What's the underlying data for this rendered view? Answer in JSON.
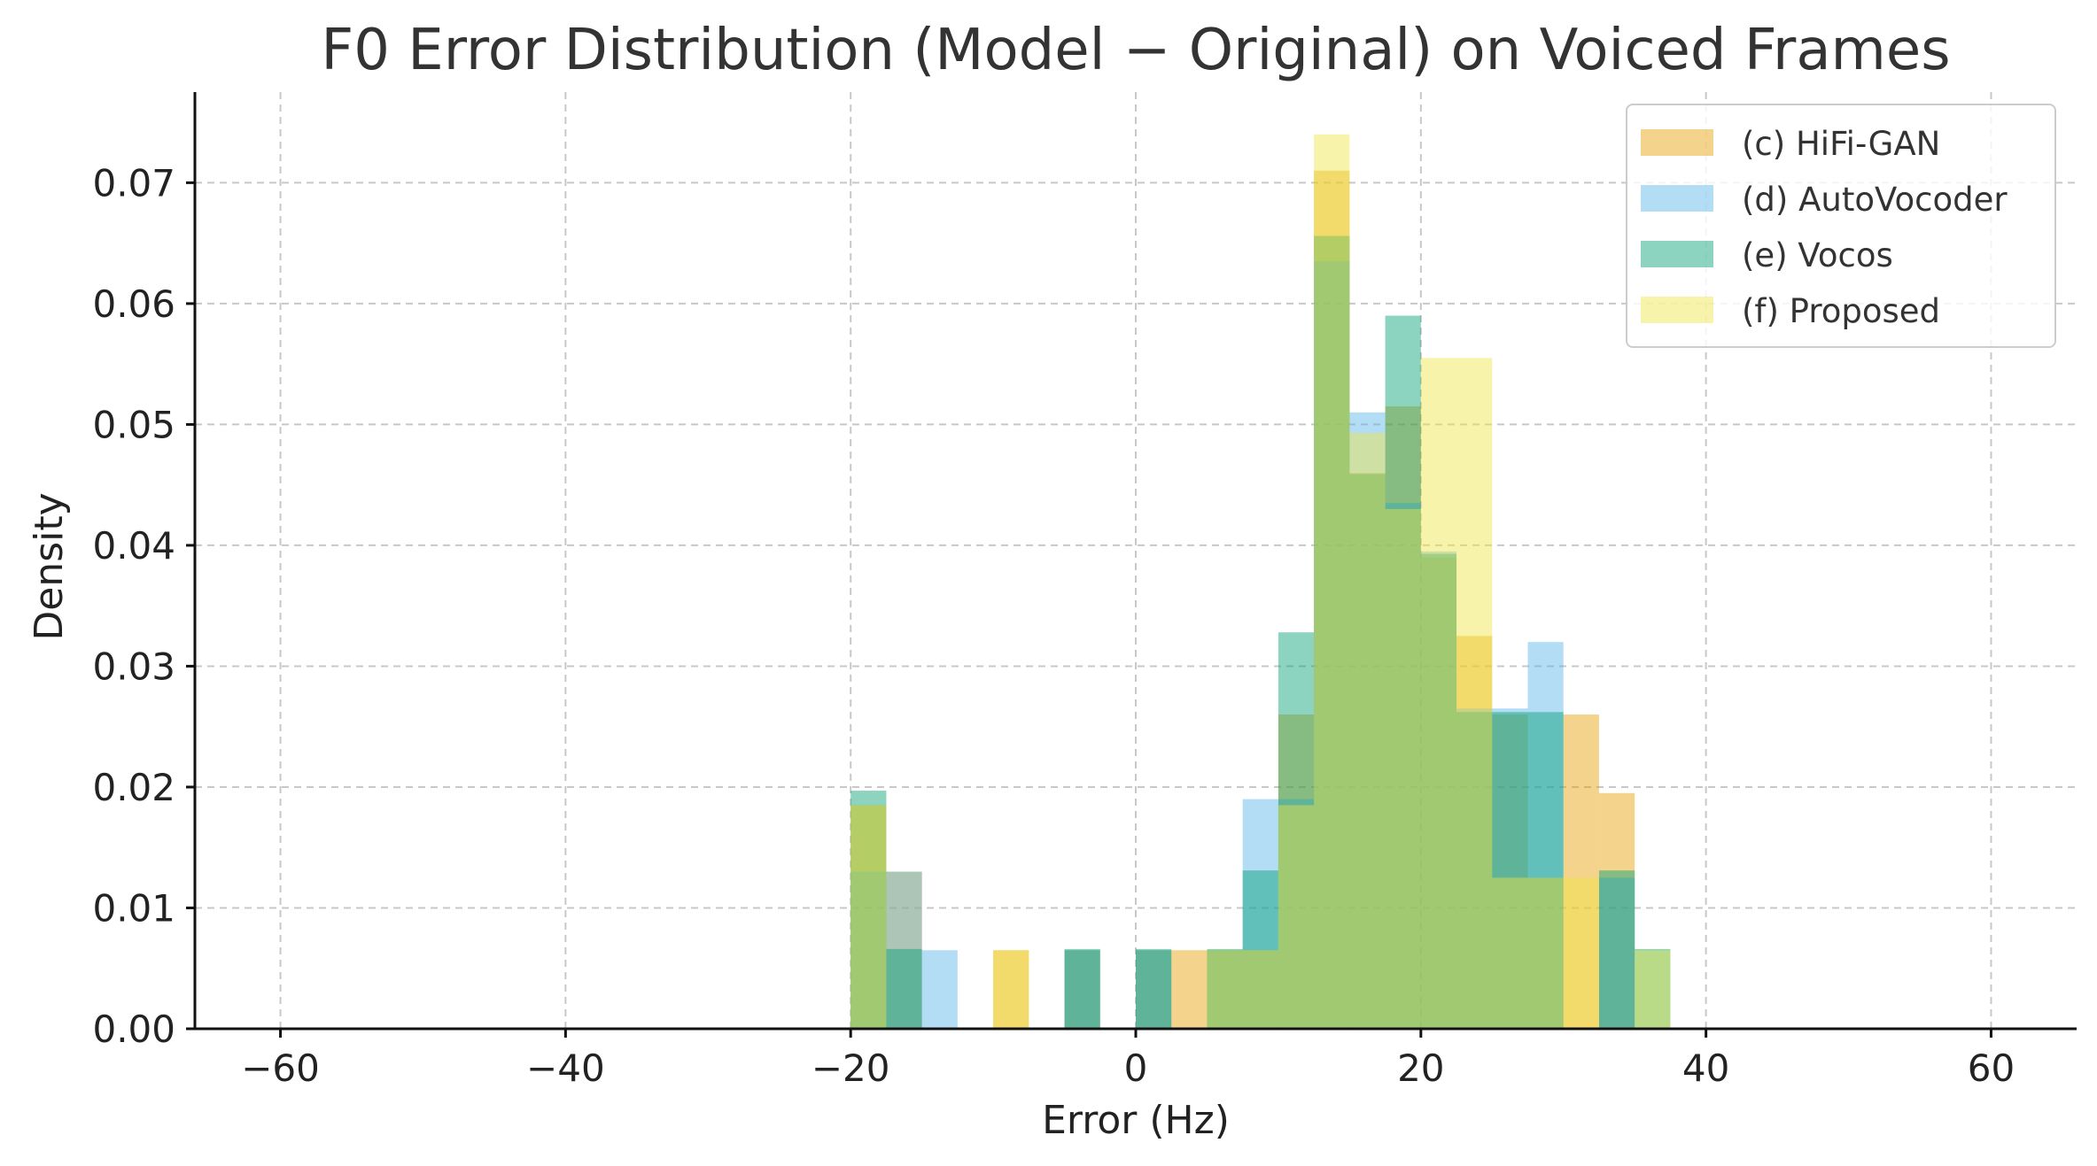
{
  "chart_data": {
    "type": "bar",
    "subtype": "overlapping-histogram",
    "title": "F0 Error Distribution (Model − Original) on Voiced Frames",
    "xlabel": "Error (Hz)",
    "ylabel": "Density",
    "xlim": [
      -66,
      66
    ],
    "ylim": [
      0,
      0.0775
    ],
    "xticks": [
      -60,
      -40,
      -20,
      0,
      20,
      40,
      60
    ],
    "xtick_labels": [
      "−60",
      "−40",
      "−20",
      "0",
      "20",
      "40",
      "60"
    ],
    "yticks": [
      0,
      0.01,
      0.02,
      0.03,
      0.04,
      0.05,
      0.06,
      0.07
    ],
    "ytick_labels": [
      "0.00",
      "0.01",
      "0.02",
      "0.03",
      "0.04",
      "0.05",
      "0.06",
      "0.07"
    ],
    "grid": true,
    "legend_position": "top-right",
    "bin_width": 2.5,
    "series": [
      {
        "name": "(c) HiFi-GAN",
        "color": "#E69F00",
        "opacity": 0.45,
        "bins": [
          {
            "x0": -20,
            "x1": -17.5,
            "y": 0.0185
          },
          {
            "x0": -17.5,
            "x1": -15,
            "y": 0.013
          },
          {
            "x0": -10,
            "x1": -7.5,
            "y": 0.0065
          },
          {
            "x0": -5,
            "x1": -2.5,
            "y": 0.0065
          },
          {
            "x0": 0,
            "x1": 2.5,
            "y": 0.0065
          },
          {
            "x0": 2.5,
            "x1": 5,
            "y": 0.0065
          },
          {
            "x0": 5,
            "x1": 7.5,
            "y": 0.0065
          },
          {
            "x0": 7.5,
            "x1": 10,
            "y": 0.0065
          },
          {
            "x0": 10,
            "x1": 12.5,
            "y": 0.026
          },
          {
            "x0": 12.5,
            "x1": 15,
            "y": 0.071
          },
          {
            "x0": 15,
            "x1": 17.5,
            "y": 0.046
          },
          {
            "x0": 17.5,
            "x1": 20,
            "y": 0.0515
          },
          {
            "x0": 20,
            "x1": 22.5,
            "y": 0.039
          },
          {
            "x0": 22.5,
            "x1": 25,
            "y": 0.0325
          },
          {
            "x0": 25,
            "x1": 27.5,
            "y": 0.026
          },
          {
            "x0": 27.5,
            "x1": 30,
            "y": 0.0125
          },
          {
            "x0": 30,
            "x1": 32.5,
            "y": 0.026
          },
          {
            "x0": 32.5,
            "x1": 35,
            "y": 0.0195
          }
        ]
      },
      {
        "name": "(d) AutoVocoder",
        "color": "#56B4E9",
        "opacity": 0.45,
        "bins": [
          {
            "x0": -20,
            "x1": -17.5,
            "y": 0.013
          },
          {
            "x0": -17.5,
            "x1": -15,
            "y": 0.013
          },
          {
            "x0": -15,
            "x1": -12.5,
            "y": 0.0065
          },
          {
            "x0": -5,
            "x1": -2.5,
            "y": 0.0065
          },
          {
            "x0": 0,
            "x1": 2.5,
            "y": 0.0065
          },
          {
            "x0": 5,
            "x1": 7.5,
            "y": 0.0065
          },
          {
            "x0": 7.5,
            "x1": 10,
            "y": 0.019
          },
          {
            "x0": 10,
            "x1": 12.5,
            "y": 0.019
          },
          {
            "x0": 12.5,
            "x1": 15,
            "y": 0.0635
          },
          {
            "x0": 15,
            "x1": 17.5,
            "y": 0.051
          },
          {
            "x0": 17.5,
            "x1": 20,
            "y": 0.0435
          },
          {
            "x0": 20,
            "x1": 22.5,
            "y": 0.0395
          },
          {
            "x0": 22.5,
            "x1": 25,
            "y": 0.0265
          },
          {
            "x0": 25,
            "x1": 27.5,
            "y": 0.0265
          },
          {
            "x0": 27.5,
            "x1": 30,
            "y": 0.032
          },
          {
            "x0": 32.5,
            "x1": 35,
            "y": 0.0125
          }
        ]
      },
      {
        "name": "(e) Vocos",
        "color": "#009E73",
        "opacity": 0.45,
        "bins": [
          {
            "x0": -20,
            "x1": -17.5,
            "y": 0.0197
          },
          {
            "x0": -17.5,
            "x1": -15,
            "y": 0.0066
          },
          {
            "x0": -5,
            "x1": -2.5,
            "y": 0.0066
          },
          {
            "x0": 0,
            "x1": 2.5,
            "y": 0.0066
          },
          {
            "x0": 5,
            "x1": 7.5,
            "y": 0.0066
          },
          {
            "x0": 7.5,
            "x1": 10,
            "y": 0.0131
          },
          {
            "x0": 10,
            "x1": 12.5,
            "y": 0.0328
          },
          {
            "x0": 12.5,
            "x1": 15,
            "y": 0.0656
          },
          {
            "x0": 15,
            "x1": 17.5,
            "y": 0.0459
          },
          {
            "x0": 17.5,
            "x1": 20,
            "y": 0.059
          },
          {
            "x0": 20,
            "x1": 22.5,
            "y": 0.0393
          },
          {
            "x0": 22.5,
            "x1": 25,
            "y": 0.0262
          },
          {
            "x0": 25,
            "x1": 27.5,
            "y": 0.0262
          },
          {
            "x0": 27.5,
            "x1": 30,
            "y": 0.0262
          },
          {
            "x0": 32.5,
            "x1": 35,
            "y": 0.0131
          },
          {
            "x0": 35,
            "x1": 37.5,
            "y": 0.0066
          }
        ]
      },
      {
        "name": "(f) Proposed",
        "color": "#F0E442",
        "opacity": 0.45,
        "bins": [
          {
            "x0": -20,
            "x1": -17.5,
            "y": 0.0185
          },
          {
            "x0": -10,
            "x1": -7.5,
            "y": 0.0065
          },
          {
            "x0": 5,
            "x1": 7.5,
            "y": 0.0065
          },
          {
            "x0": 7.5,
            "x1": 10,
            "y": 0.0065
          },
          {
            "x0": 10,
            "x1": 12.5,
            "y": 0.0185
          },
          {
            "x0": 12.5,
            "x1": 15,
            "y": 0.074
          },
          {
            "x0": 15,
            "x1": 17.5,
            "y": 0.0493
          },
          {
            "x0": 17.5,
            "x1": 20,
            "y": 0.043
          },
          {
            "x0": 20,
            "x1": 22.5,
            "y": 0.0555
          },
          {
            "x0": 22.5,
            "x1": 25,
            "y": 0.0555
          },
          {
            "x0": 25,
            "x1": 27.5,
            "y": 0.0125
          },
          {
            "x0": 27.5,
            "x1": 30,
            "y": 0.0125
          },
          {
            "x0": 30,
            "x1": 32.5,
            "y": 0.0125
          },
          {
            "x0": 35,
            "x1": 37.5,
            "y": 0.0065
          }
        ]
      }
    ]
  }
}
